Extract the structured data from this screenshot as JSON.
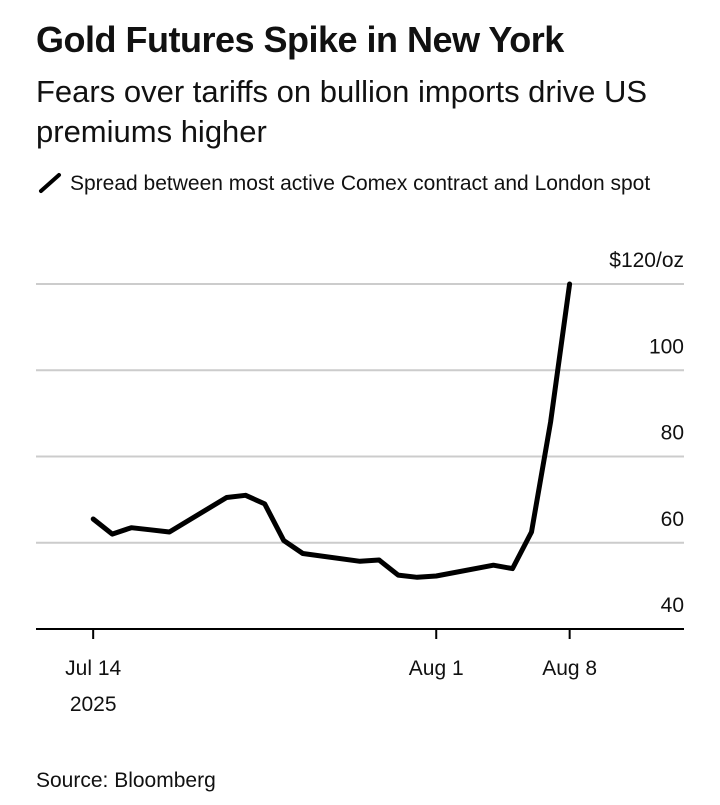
{
  "header": {
    "title": "Gold Futures Spike in New York",
    "subtitle": "Fears over tariffs on bullion imports drive US premiums higher"
  },
  "footer": {
    "source": "Source: Bloomberg"
  },
  "colors": {
    "line": "#000000",
    "grid": "#cccccc",
    "axis": "#000000",
    "text": "#111111"
  },
  "chart_data": {
    "type": "line",
    "title": "Gold Futures Spike in New York",
    "subtitle": "Fears over tariffs on bullion imports drive US premiums higher",
    "xlabel": "",
    "ylabel": "",
    "y_unit_label": "$120/oz",
    "ylim": [
      40,
      120
    ],
    "yticks": [
      {
        "value": 120,
        "label": "$120/oz"
      },
      {
        "value": 100,
        "label": "100"
      },
      {
        "value": 80,
        "label": "80"
      },
      {
        "value": 60,
        "label": "60"
      },
      {
        "value": 40,
        "label": "40"
      }
    ],
    "xlim": [
      "2025-07-11",
      "2025-08-14"
    ],
    "xticks": [
      {
        "date": "2025-07-14",
        "label": "Jul 14",
        "sublabel": "2025"
      },
      {
        "date": "2025-08-01",
        "label": "Aug 1",
        "sublabel": ""
      },
      {
        "date": "2025-08-08",
        "label": "Aug 8",
        "sublabel": ""
      }
    ],
    "grid": true,
    "legend_position": "top-left",
    "series": [
      {
        "name": "Spread between most active Comex contract and London spot",
        "x": [
          "2025-07-14",
          "2025-07-15",
          "2025-07-16",
          "2025-07-17",
          "2025-07-18",
          "2025-07-21",
          "2025-07-22",
          "2025-07-23",
          "2025-07-24",
          "2025-07-25",
          "2025-07-28",
          "2025-07-29",
          "2025-07-30",
          "2025-07-31",
          "2025-08-01",
          "2025-08-04",
          "2025-08-05",
          "2025-08-06",
          "2025-08-07",
          "2025-08-08"
        ],
        "values": [
          65.5,
          62,
          63.5,
          63,
          62.5,
          70.5,
          71,
          69,
          60.5,
          57.5,
          55.7,
          56,
          52.5,
          52,
          52.3,
          54.8,
          54,
          62.5,
          88,
          120
        ]
      }
    ]
  }
}
